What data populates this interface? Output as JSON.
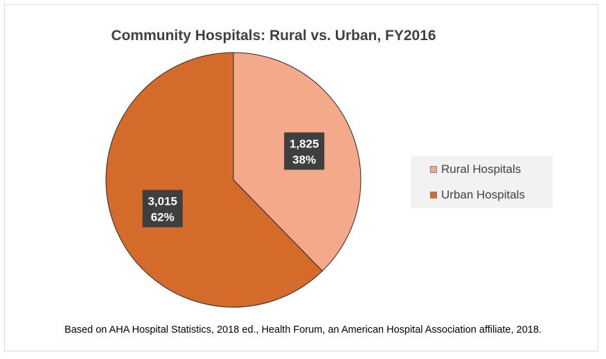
{
  "chart_data": {
    "type": "pie",
    "title": "Community Hospitals:  Rural vs. Urban, FY2016",
    "slices": [
      {
        "name": "Rural Hospitals",
        "value": 1825,
        "value_label": "1,825",
        "percent_label": "38%",
        "color": "#f4a98b"
      },
      {
        "name": "Urban Hospitals",
        "value": 3015,
        "value_label": "3,015",
        "percent_label": "62%",
        "color": "#d46b2a"
      }
    ],
    "legend_position": "right",
    "start_angle_deg": 0,
    "direction": "clockwise"
  },
  "footer": "Based on AHA Hospital  Statistics, 2018 ed., Health Forum, an American Hospital Association affiliate, 2018."
}
